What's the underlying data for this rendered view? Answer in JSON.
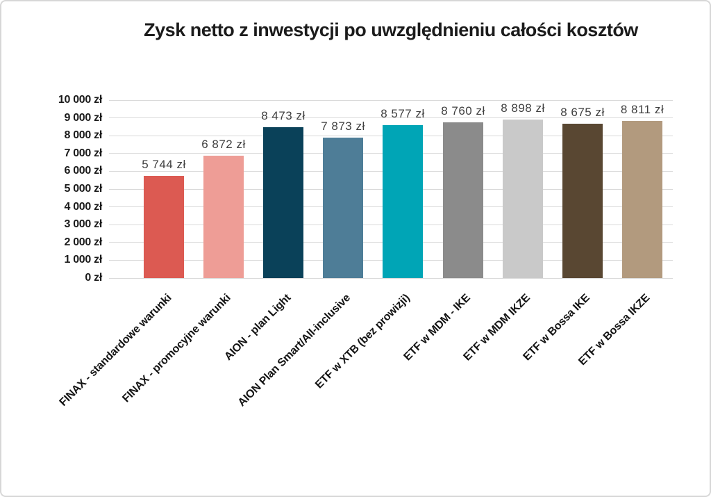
{
  "chart_data": {
    "type": "bar",
    "title": "Zysk netto z inwestycji po uwzględnieniu całości kosztów",
    "categories": [
      "FINAX - standardowe warunki",
      "FINAX - promocyjne warunki",
      "AION - plan Light",
      "AION Plan Smart/All-inclusive",
      "ETF w XTB (bez prowizji)",
      "ETF w MDM - IKE",
      "ETF w MDM IKZE",
      "ETF w Bossa IKE",
      "ETF w Bossa IKZE"
    ],
    "values": [
      5744,
      6872,
      8473,
      7873,
      8577,
      8760,
      8898,
      8675,
      8811
    ],
    "value_labels": [
      "5 744 zł",
      "6 872 zł",
      "8 473 zł",
      "7 873 zł",
      "8 577 zł",
      "8 760 zł",
      "8 898 zł",
      "8 675 zł",
      "8 811 zł"
    ],
    "bar_colors": [
      "#dc5a52",
      "#ee9d96",
      "#0a4159",
      "#4e7d97",
      "#00a5b6",
      "#8b8b8b",
      "#c9c9c9",
      "#594732",
      "#b29a7e"
    ],
    "unit": "zł",
    "xlabel": "",
    "ylabel": "",
    "ylim": [
      0,
      10000
    ],
    "y_ticks": [
      0,
      1000,
      2000,
      3000,
      4000,
      5000,
      6000,
      7000,
      8000,
      9000,
      10000
    ],
    "y_tick_labels": [
      "0 zł",
      "1 000 zł",
      "2 000 zł",
      "3 000 zł",
      "4 000 zł",
      "5 000 zł",
      "6 000 zł",
      "7 000 zł",
      "8 000 zł",
      "9 000 zł",
      "10 000 zł"
    ],
    "grid": "horizontal",
    "legend": "none",
    "gridline_color": "#d9d9d9",
    "value_label_color": "#3f3f3f",
    "text_color": "#1b1b1b",
    "background_color": "#ffffff",
    "border_color": "#d7d7d7"
  }
}
